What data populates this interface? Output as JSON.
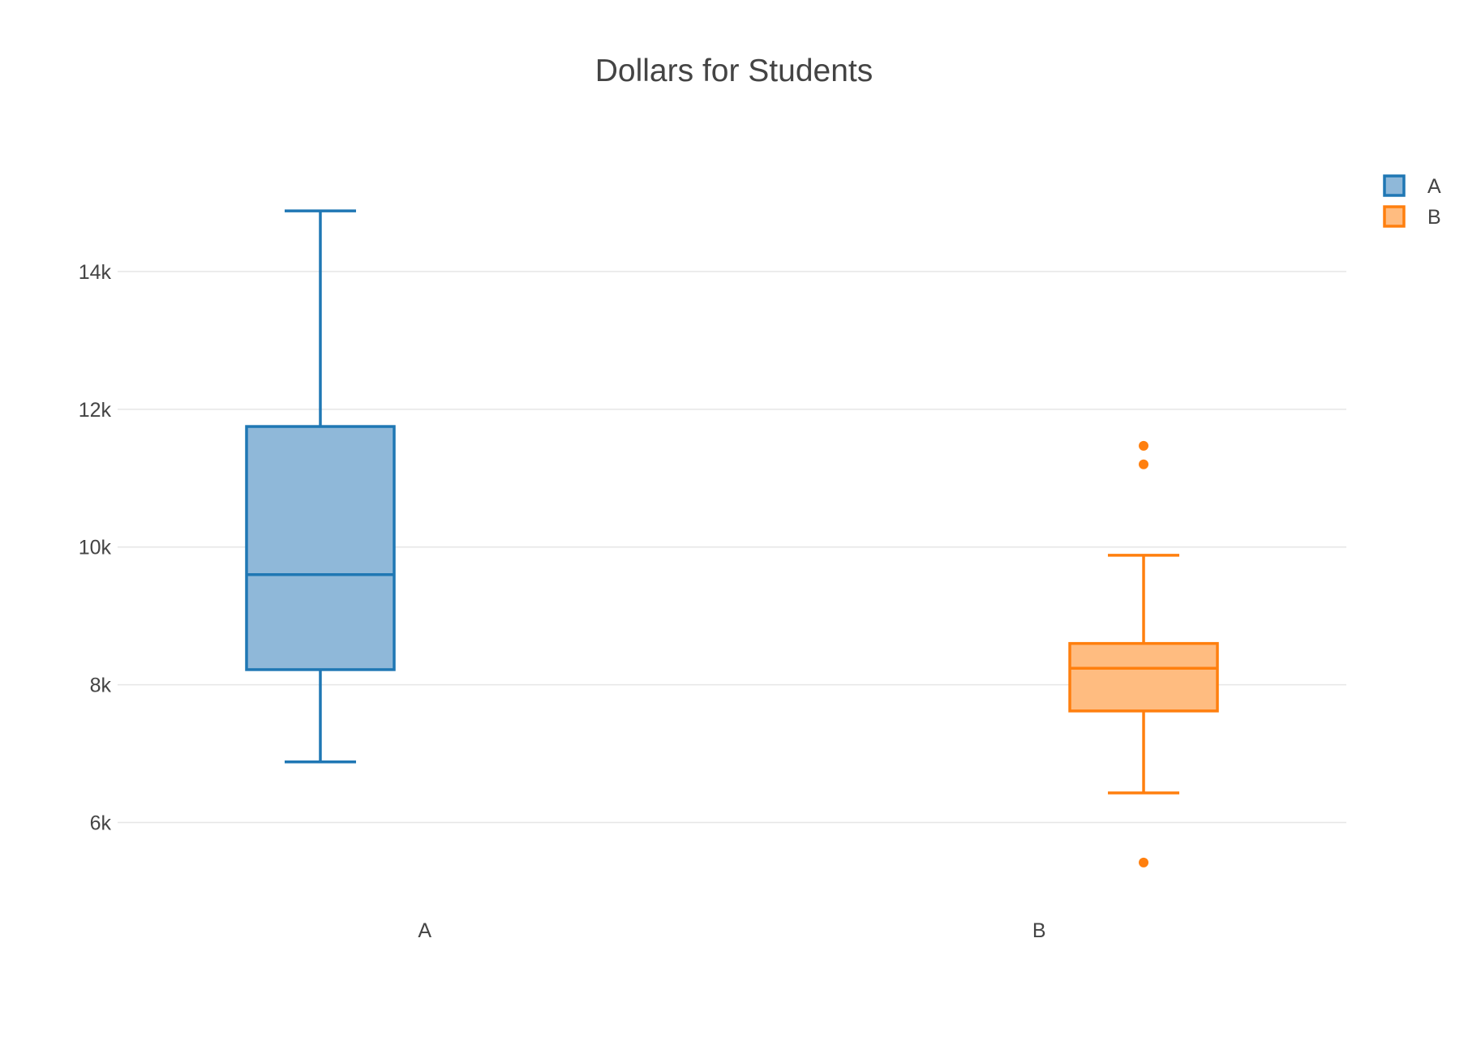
{
  "chart_data": {
    "type": "box",
    "title": "Dollars for Students",
    "xlabel": "",
    "ylabel": "",
    "categories": [
      "A",
      "B"
    ],
    "ylim": [
      4900,
      16200
    ],
    "yticks": [
      6000,
      8000,
      10000,
      12000,
      14000
    ],
    "ytick_labels": [
      "6k",
      "8k",
      "10k",
      "12k",
      "14k"
    ],
    "grid": true,
    "legend_position": "top-right",
    "series": [
      {
        "name": "A",
        "category": "A",
        "color": "#1f77b4",
        "fill": "#8fb8d9",
        "lower_whisker": 6880,
        "q1": 8220,
        "median": 9600,
        "q3": 11750,
        "upper_whisker": 14880,
        "outliers": []
      },
      {
        "name": "B",
        "category": "B",
        "color": "#ff7f0e",
        "fill": "#ffbc80",
        "lower_whisker": 6430,
        "q1": 7620,
        "median": 8240,
        "q3": 8600,
        "upper_whisker": 9880,
        "outliers": [
          5420,
          11200,
          11470
        ]
      }
    ]
  }
}
